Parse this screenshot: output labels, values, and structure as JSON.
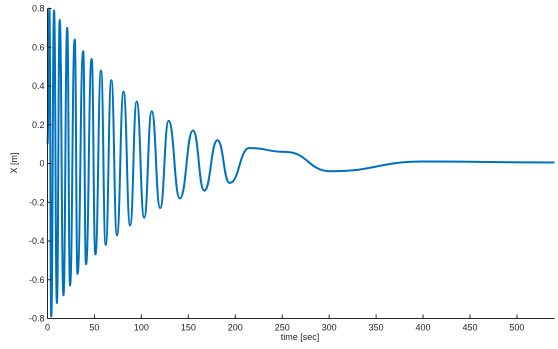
{
  "chart_data": {
    "type": "line",
    "title": "",
    "xlabel": "time [sec]",
    "ylabel": "X [m]",
    "xlim": [
      0,
      540
    ],
    "ylim": [
      -0.8,
      0.8
    ],
    "grid": false,
    "x_ticks": [
      0,
      50,
      100,
      150,
      200,
      250,
      300,
      350,
      400,
      450,
      500
    ],
    "y_ticks": [
      -0.8,
      -0.6,
      -0.4,
      -0.2,
      0,
      0.2,
      0.4,
      0.6,
      0.8
    ],
    "x_tick_labels": [
      "0",
      "50",
      "100",
      "150",
      "200",
      "250",
      "300",
      "350",
      "400",
      "450",
      "500"
    ],
    "y_tick_labels": [
      "-0.8",
      "-0.6",
      "-0.4",
      "-0.2",
      "0",
      "0.2",
      "0.4",
      "0.6",
      "0.8"
    ],
    "series": [
      {
        "color": "#0072bd",
        "x": [
          0,
          2,
          4,
          7,
          10,
          13,
          17,
          21,
          24,
          29,
          32,
          38,
          41,
          47,
          51,
          57,
          62,
          68,
          74,
          81,
          88,
          95,
          103,
          111,
          120,
          129,
          141,
          155,
          167,
          181,
          194,
          215,
          253,
          302,
          400,
          540
        ],
        "y": [
          0.1,
          0.8,
          -0.79,
          0.79,
          -0.72,
          0.74,
          -0.68,
          0.7,
          -0.63,
          0.64,
          -0.57,
          0.58,
          -0.52,
          0.54,
          -0.47,
          0.48,
          -0.42,
          0.43,
          -0.37,
          0.37,
          -0.32,
          0.32,
          -0.28,
          0.27,
          -0.23,
          0.22,
          -0.18,
          0.17,
          -0.14,
          0.12,
          -0.1,
          0.08,
          0.06,
          -0.04,
          0.01,
          0.005
        ]
      }
    ]
  }
}
